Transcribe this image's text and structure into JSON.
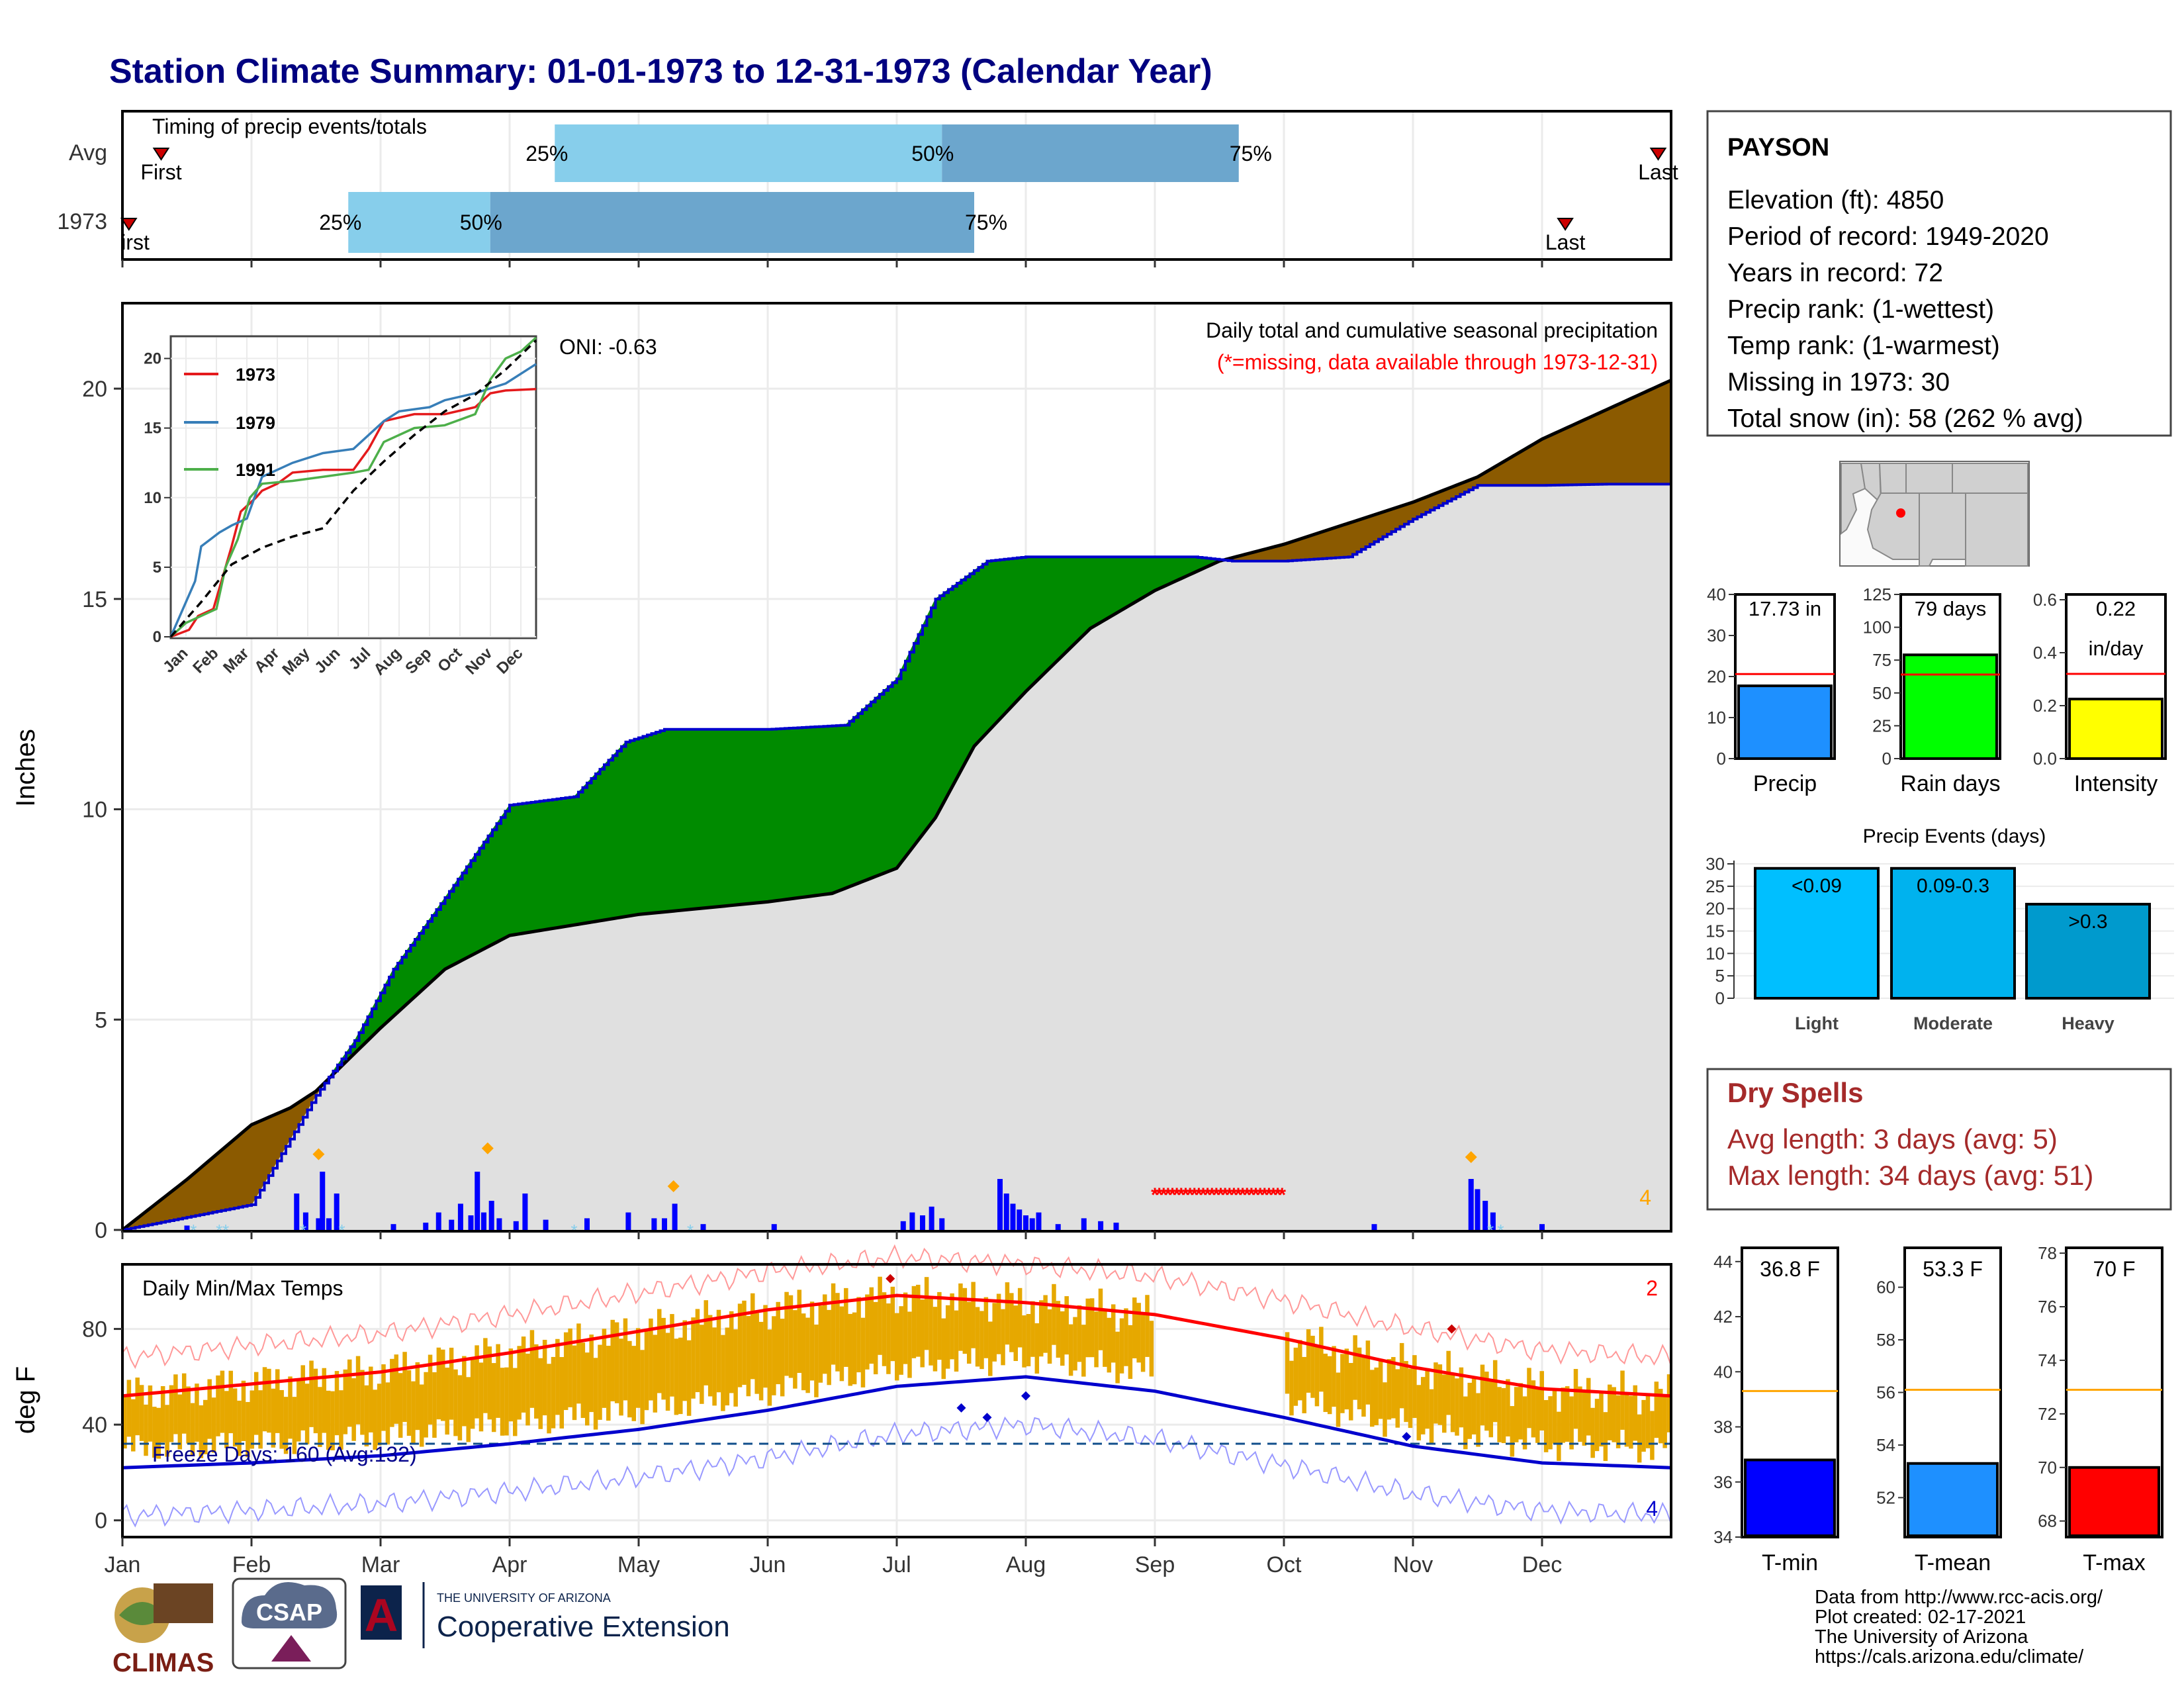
{
  "title": "Station Climate Summary: 01-01-1973 to 12-31-1973 (Calendar Year)",
  "colors": {
    "title": "#000080",
    "q_light": "#87ceeb",
    "q_dark": "#6ca6cd",
    "fill_above": "#008b00",
    "fill_below": "#8b5a00",
    "climo_fill": "#e0e0e0",
    "obs_line": "#0000cd",
    "bars": "#0000ff",
    "tmax": "#ff0000",
    "tmin": "#0000cd",
    "temp_range": "#e6a800",
    "dry": "#a52a2a",
    "missing": "#ff0000"
  },
  "timing": {
    "title": "Timing of precip events/totals",
    "rows": [
      {
        "label": "Avg",
        "first_label": "First",
        "last_label": "Last",
        "first": 0.3,
        "last": 11.9,
        "p25": 3.35,
        "p50": 6.35,
        "p75": 8.65
      },
      {
        "label": "1973",
        "first_label": "First",
        "last_label": "Last",
        "first": 0.05,
        "last": 11.18,
        "p25": 1.75,
        "p50": 2.85,
        "p75": 6.6
      }
    ],
    "pct_labels": [
      "25%",
      "50%",
      "75%"
    ]
  },
  "precip_panel": {
    "ylabel": "Inches",
    "yticks": [
      "0",
      "5",
      "10",
      "15",
      "20"
    ],
    "oni": "ONI: -0.63",
    "title": "Daily total and cumulative seasonal precipitation",
    "subtitle": "(*=missing, data available through 1973-12-31)",
    "corner_count": "4"
  },
  "inset": {
    "yticks": [
      "0",
      "5",
      "10",
      "15",
      "20"
    ],
    "months": [
      "Jan",
      "Feb",
      "Mar",
      "Apr",
      "May",
      "Jun",
      "Jul",
      "Aug",
      "Sep",
      "Oct",
      "Nov",
      "Dec"
    ],
    "legend": [
      {
        "name": "1973",
        "color": "#e41a1c"
      },
      {
        "name": "1979",
        "color": "#377eb8"
      },
      {
        "name": "1991",
        "color": "#4daf4a"
      }
    ]
  },
  "temp_panel": {
    "ylabel": "deg F",
    "title": "Daily Min/Max Temps",
    "freeze_label": "Freeze Days: 160 (Avg:132)",
    "yticks": [
      "0",
      "40",
      "80"
    ],
    "count_max": "2",
    "count_min": "4"
  },
  "months": [
    "Jan",
    "Feb",
    "Mar",
    "Apr",
    "May",
    "Jun",
    "Jul",
    "Aug",
    "Sep",
    "Oct",
    "Nov",
    "Dec"
  ],
  "station": {
    "name": "PAYSON",
    "lines": [
      "Elevation (ft): 4850",
      "Period of record: 1949-2020",
      "Years in record: 72",
      "Precip rank:  (1-wettest)",
      "Temp rank:  (1-warmest)",
      "Missing in 1973: 30",
      "Total snow (in): 58 (262 % avg)"
    ]
  },
  "mini_bars": [
    {
      "label": "Precip",
      "value_text": "17.73 in",
      "value": 17.73,
      "avg": 20.6,
      "ymax": 40,
      "yticks": [
        "0",
        "10",
        "20",
        "30",
        "40"
      ],
      "color": "#1e90ff"
    },
    {
      "label": "Rain days",
      "value_text": "79 days",
      "value": 79,
      "avg": 64,
      "ymax": 125,
      "yticks": [
        "0",
        "25",
        "50",
        "75",
        "100",
        "125"
      ],
      "color": "#00ff00"
    },
    {
      "label": "Intensity",
      "value_text": "0.22",
      "value_text2": "in/day",
      "value": 0.225,
      "avg": 0.32,
      "ymax": 0.62,
      "yticks": [
        "0.0",
        "0.2",
        "0.4",
        "0.6"
      ],
      "color": "#ffff00"
    }
  ],
  "precip_events": {
    "title": "Precip Events (days)",
    "yticks": [
      "0",
      "5",
      "10",
      "15",
      "20",
      "25",
      "30"
    ],
    "bars": [
      {
        "category": "Light",
        "label": "<0.09",
        "value": 29,
        "color": "#00bfff"
      },
      {
        "category": "Moderate",
        "label": "0.09-0.3",
        "value": 29,
        "color": "#00b2ee"
      },
      {
        "category": "Heavy",
        "label": ">0.3",
        "value": 21,
        "color": "#009acd"
      }
    ]
  },
  "dry_spells": {
    "title": "Dry Spells",
    "avg": "Avg length: 3 days (avg: 5)",
    "max": "Max length: 34 days (avg: 51)"
  },
  "temp_bars": [
    {
      "label": "T-min",
      "value_text": "36.8 F",
      "value": 36.8,
      "avg": 39.3,
      "ymin": 34,
      "ymax": 44.5,
      "yticks": [
        "34",
        "36",
        "38",
        "40",
        "42",
        "44"
      ],
      "color": "#0000ff"
    },
    {
      "label": "T-mean",
      "value_text": "53.3 F",
      "value": 53.3,
      "avg": 56.1,
      "ymin": 50.5,
      "ymax": 61.5,
      "yticks": [
        "52",
        "54",
        "56",
        "58",
        "60"
      ],
      "color": "#1e90ff"
    },
    {
      "label": "T-max",
      "value_text": "70 F",
      "value": 70,
      "avg": 72.9,
      "ymin": 67.4,
      "ymax": 78.2,
      "yticks": [
        "68",
        "70",
        "72",
        "74",
        "76",
        "78"
      ],
      "color": "#ff0000"
    }
  ],
  "footer": {
    "lines": [
      "Data from http://www.rcc-acis.org/",
      "Plot created: 02-17-2021",
      "The University of Arizona",
      "https://cals.arizona.edu/climate/"
    ]
  },
  "logos": {
    "climas": "CLIMAS",
    "csap": "CSAP",
    "ua_small": "THE UNIVERSITY OF ARIZONA",
    "coop": "Cooperative Extension",
    "ua_letter": "A"
  },
  "chart_data": [
    {
      "type": "area",
      "title": "Daily total and cumulative seasonal precipitation",
      "ylabel": "Inches",
      "ylim": [
        0,
        22
      ],
      "series": [
        {
          "name": "1973",
          "x": [
            0,
            0.5,
            1.0,
            1.5,
            1.8,
            2.1,
            2.5,
            3.0,
            3.5,
            3.9,
            4.2,
            4.6,
            5.0,
            5.6,
            6.0,
            6.3,
            6.7,
            7.0,
            7.3,
            7.6,
            8.0,
            8.3,
            8.6,
            9.0,
            9.5,
            10.0,
            10.5,
            11.0,
            11.5,
            12.0
          ],
          "values": [
            0,
            0.3,
            0.6,
            3.2,
            4.5,
            6.2,
            7.9,
            10.1,
            10.3,
            11.6,
            11.9,
            11.9,
            11.9,
            12.0,
            13.1,
            15.0,
            15.9,
            16.0,
            16.0,
            16.0,
            16.0,
            16.0,
            15.9,
            15.9,
            16.0,
            16.9,
            17.7,
            17.7,
            17.73,
            17.73
          ]
        },
        {
          "name": "Avg",
          "x": [
            0,
            0.5,
            1.0,
            1.3,
            1.5,
            2.0,
            2.5,
            3.0,
            4.0,
            5.0,
            5.5,
            6.0,
            6.3,
            6.6,
            7.0,
            7.5,
            8.0,
            8.5,
            9.0,
            9.5,
            10.0,
            10.5,
            11.0,
            11.5,
            12.0
          ],
          "values": [
            0,
            1.2,
            2.5,
            2.9,
            3.3,
            4.8,
            6.2,
            7.0,
            7.5,
            7.8,
            8.0,
            8.6,
            9.8,
            11.5,
            12.8,
            14.3,
            15.2,
            15.9,
            16.3,
            16.8,
            17.3,
            17.9,
            18.8,
            19.5,
            20.2
          ]
        }
      ]
    },
    {
      "type": "line",
      "title": "Daily Min/Max Temps",
      "ylabel": "deg F",
      "ylim": [
        -7,
        107
      ],
      "x": [
        0,
        1,
        2,
        3,
        4,
        5,
        6,
        7,
        8,
        9,
        10,
        11,
        12
      ],
      "series": [
        {
          "name": "Avg max",
          "values": [
            52,
            57,
            62,
            70,
            79,
            88,
            94,
            91,
            86,
            76,
            64,
            55,
            52
          ]
        },
        {
          "name": "Avg min",
          "values": [
            22,
            24,
            27,
            32,
            38,
            46,
            56,
            60,
            54,
            43,
            31,
            24,
            22
          ]
        }
      ]
    },
    {
      "type": "bar",
      "title": "Precip Events (days)",
      "categories": [
        "Light",
        "Moderate",
        "Heavy"
      ],
      "values": [
        29,
        29,
        21
      ]
    }
  ]
}
